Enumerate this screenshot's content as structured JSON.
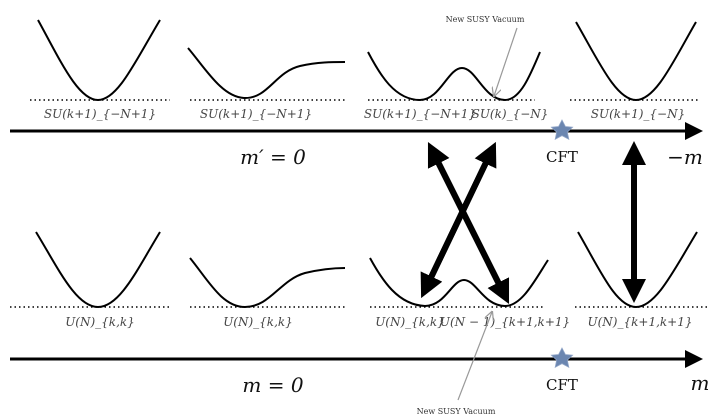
{
  "top_row": {
    "labels": [
      "SU(k+1)_{−N+1}",
      "SU(k+1)_{−N+1}",
      "SU(k+1)_{−N+1}",
      "SU(k)_{−N}",
      "SU(k+1)_{−N}"
    ],
    "annotation": "New SUSY Vacuum",
    "axis_left_label": "m′ = 0",
    "axis_right_label": "−m",
    "cft_label": "CFT"
  },
  "bottom_row": {
    "labels": [
      "U(N)_{k,k}",
      "U(N)_{k,k}",
      "U(N)_{k,k}",
      "U(N − 1)_{k+1,k+1}",
      "U(N)_{k+1,k+1}"
    ],
    "annotation": "New SUSY Vacuum",
    "axis_left_label": "m = 0",
    "axis_right_label": "m",
    "cft_label": "CFT"
  },
  "colors": {
    "star": "#6b86b0",
    "annotation_arrow": "#999999"
  }
}
